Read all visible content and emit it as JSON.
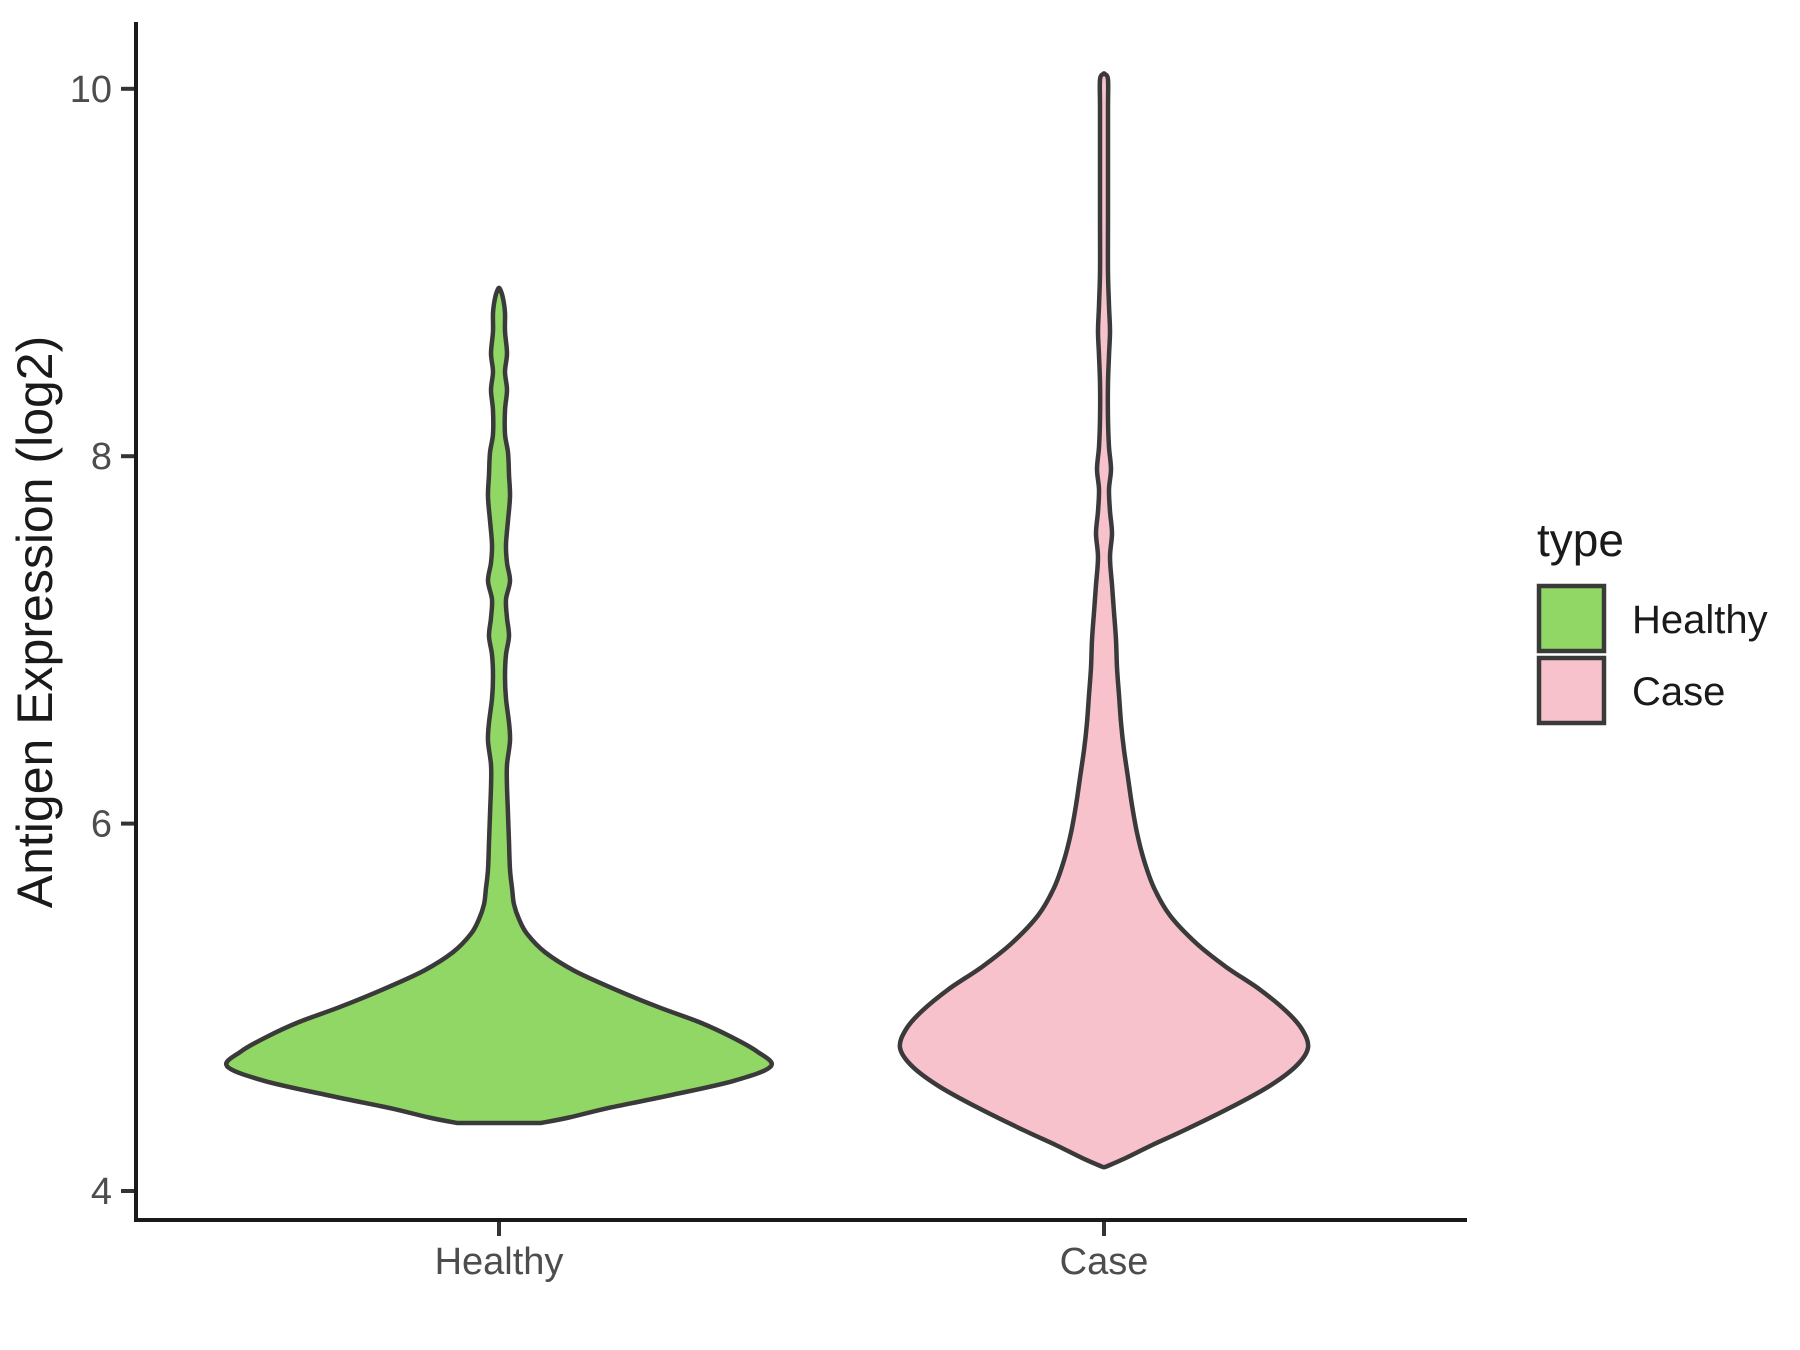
{
  "chart_data": {
    "type": "violin",
    "title": "",
    "xlabel": "",
    "ylabel": "Antigen Expression (log2)",
    "categories": [
      "Healthy",
      "Case"
    ],
    "y_axis": {
      "min": 4,
      "max": 10,
      "ticks": [
        10,
        8,
        6,
        4
      ],
      "tick_labels": [
        "10",
        "8",
        "6",
        "4"
      ]
    },
    "grid": false,
    "background": "#FFFFFF",
    "legend": {
      "title": "type",
      "position": "right",
      "items": [
        {
          "label": "Healthy",
          "color": "#90D765"
        },
        {
          "label": "Case",
          "color": "#F7C2CC"
        }
      ]
    },
    "colors": {
      "outline": "#3A3A3A",
      "axis_line": "#1A1A1A",
      "tick_mark": "#333333",
      "tick_text": "#4D4D4D",
      "title_text": "#1A1A1A"
    },
    "series": [
      {
        "name": "Healthy",
        "summary": {
          "min_value": 4.37,
          "max_value": 8.91,
          "widest_at": 4.68,
          "bottom": "trimmed-flat"
        },
        "profile_value_halfwidth": [
          [
            4.37,
            42
          ],
          [
            4.4,
            70
          ],
          [
            4.45,
            108
          ],
          [
            4.52,
            170
          ],
          [
            4.6,
            235
          ],
          [
            4.68,
            272
          ],
          [
            4.76,
            258
          ],
          [
            4.84,
            232
          ],
          [
            4.92,
            200
          ],
          [
            5.0,
            160
          ],
          [
            5.1,
            115
          ],
          [
            5.2,
            75
          ],
          [
            5.3,
            46
          ],
          [
            5.4,
            28
          ],
          [
            5.48,
            20
          ],
          [
            5.56,
            15
          ],
          [
            5.65,
            13
          ],
          [
            5.75,
            11
          ],
          [
            5.9,
            10
          ],
          [
            6.05,
            9
          ],
          [
            6.2,
            8
          ],
          [
            6.32,
            8
          ],
          [
            6.45,
            11
          ],
          [
            6.55,
            10
          ],
          [
            6.68,
            7
          ],
          [
            6.8,
            6
          ],
          [
            6.92,
            7
          ],
          [
            7.02,
            10
          ],
          [
            7.12,
            8
          ],
          [
            7.22,
            7
          ],
          [
            7.32,
            11
          ],
          [
            7.42,
            8
          ],
          [
            7.52,
            7
          ],
          [
            7.65,
            9
          ],
          [
            7.78,
            11
          ],
          [
            7.9,
            10
          ],
          [
            8.02,
            9
          ],
          [
            8.12,
            6
          ],
          [
            8.25,
            6
          ],
          [
            8.36,
            8
          ],
          [
            8.46,
            6
          ],
          [
            8.56,
            8
          ],
          [
            8.68,
            6
          ],
          [
            8.78,
            6
          ],
          [
            8.86,
            4
          ],
          [
            8.91,
            1
          ]
        ]
      },
      {
        "name": "Case",
        "summary": {
          "min_value": 4.13,
          "max_value": 10.08,
          "widest_at": 4.78,
          "bottom": "pointed"
        },
        "profile_value_halfwidth": [
          [
            4.13,
            1
          ],
          [
            4.18,
            22
          ],
          [
            4.25,
            48
          ],
          [
            4.33,
            80
          ],
          [
            4.45,
            125
          ],
          [
            4.57,
            165
          ],
          [
            4.68,
            192
          ],
          [
            4.78,
            204
          ],
          [
            4.88,
            198
          ],
          [
            4.98,
            182
          ],
          [
            5.1,
            155
          ],
          [
            5.22,
            122
          ],
          [
            5.35,
            92
          ],
          [
            5.5,
            66
          ],
          [
            5.65,
            50
          ],
          [
            5.8,
            40
          ],
          [
            5.95,
            33
          ],
          [
            6.1,
            28
          ],
          [
            6.25,
            24
          ],
          [
            6.4,
            20
          ],
          [
            6.55,
            17
          ],
          [
            6.7,
            15
          ],
          [
            6.85,
            13
          ],
          [
            7.0,
            12
          ],
          [
            7.15,
            10
          ],
          [
            7.3,
            8
          ],
          [
            7.45,
            6
          ],
          [
            7.58,
            8
          ],
          [
            7.7,
            6
          ],
          [
            7.82,
            5
          ],
          [
            7.93,
            7
          ],
          [
            8.05,
            5
          ],
          [
            8.2,
            4
          ],
          [
            8.4,
            4
          ],
          [
            8.55,
            5
          ],
          [
            8.68,
            6
          ],
          [
            8.82,
            5
          ],
          [
            9.0,
            4
          ],
          [
            9.3,
            4
          ],
          [
            9.6,
            4
          ],
          [
            9.9,
            4
          ],
          [
            10.05,
            4
          ],
          [
            10.08,
            1
          ]
        ]
      }
    ]
  }
}
